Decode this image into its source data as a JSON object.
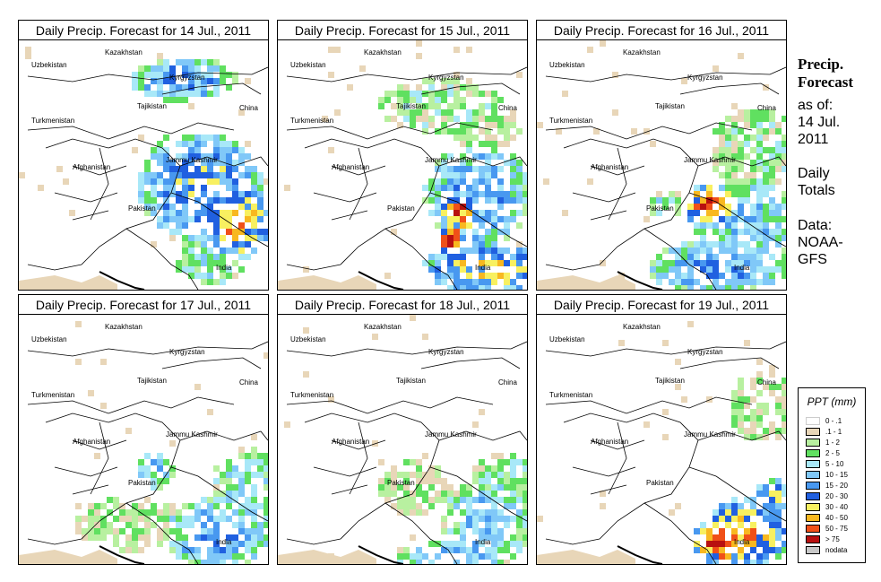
{
  "title_prefix": "Daily Precip. Forecast for",
  "panels": [
    {
      "date": "14 Jul., 2011",
      "title": "Daily Precip. Forecast for  14 Jul., 2011"
    },
    {
      "date": "15 Jul., 2011",
      "title": "Daily Precip. Forecast for  15 Jul., 2011"
    },
    {
      "date": "16 Jul., 2011",
      "title": "Daily Precip. Forecast for  16 Jul., 2011"
    },
    {
      "date": "17 Jul., 2011",
      "title": "Daily Precip. Forecast for  17 Jul., 2011"
    },
    {
      "date": "18 Jul., 2011",
      "title": "Daily Precip. Forecast for  18 Jul., 2011"
    },
    {
      "date": "19 Jul., 2011",
      "title": "Daily Precip. Forecast for  19 Jul., 2011"
    }
  ],
  "map_labels": {
    "uzbekistan": "Uzbekistan",
    "kazakhstan": "Kazakhstan",
    "kyrgyzstan": "Kyrgyzstan",
    "tajikistan": "Tajikistan",
    "china": "China",
    "turkmenistan": "Turkmenistan",
    "afghanistan": "Afghanistan",
    "jammu_kashmir": "Jammu Kashmir",
    "pakistan": "Pakistan",
    "india": "India"
  },
  "side": {
    "title_line1": "Precip.",
    "title_line2": "Forecast",
    "as_of_label": "as of:",
    "as_of_date_line1": "14 Jul.",
    "as_of_date_line2": "2011",
    "daily_line1": "Daily",
    "daily_line2": "Totals",
    "data_line1": "Data:",
    "data_line2": "NOAA-",
    "data_line3": "GFS"
  },
  "legend": {
    "title": "PPT (mm)",
    "items": [
      {
        "label": "0 - .1",
        "color": "#ffffff"
      },
      {
        "label": ".1 - 1",
        "color": "#e8d6b8"
      },
      {
        "label": "1 - 2",
        "color": "#b8f0a0"
      },
      {
        "label": "2 - 5",
        "color": "#60e060"
      },
      {
        "label": "5 - 10",
        "color": "#a8e8f8"
      },
      {
        "label": "10 - 15",
        "color": "#80c8f8"
      },
      {
        "label": "15 - 20",
        "color": "#4898f0"
      },
      {
        "label": "20 - 30",
        "color": "#2060e0"
      },
      {
        "label": "30 - 40",
        "color": "#f8f060"
      },
      {
        "label": "40 - 50",
        "color": "#f8b820"
      },
      {
        "label": "50 - 75",
        "color": "#f05018"
      },
      {
        "label": "> 75",
        "color": "#b81010"
      },
      {
        "label": "nodata",
        "color": "#c8c8c8"
      }
    ]
  }
}
